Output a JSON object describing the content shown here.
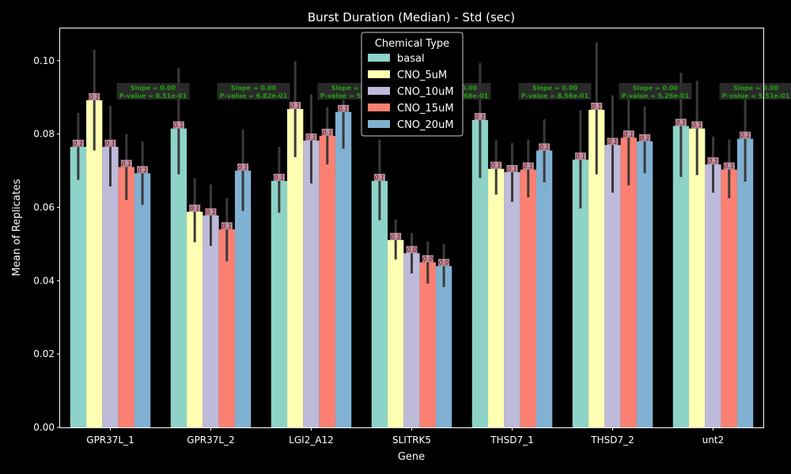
{
  "chart_data": {
    "type": "bar",
    "title": "Burst Duration (Median) - Std (sec)",
    "xlabel": "Gene",
    "ylabel": "Mean of Replicates",
    "ylim": [
      0,
      0.109
    ],
    "yticks": [
      0.0,
      0.02,
      0.04,
      0.06,
      0.08,
      0.1
    ],
    "ytick_labels": [
      "0.00",
      "0.02",
      "0.04",
      "0.06",
      "0.08",
      "0.10"
    ],
    "grid": false,
    "legend": {
      "title": "Chemical Type",
      "placement": "top-center"
    },
    "categories": [
      "GPR37L_1",
      "GPR37L_2",
      "LGI2_A12",
      "SLITRK5",
      "THSD7_1",
      "THSD7_2",
      "unt2"
    ],
    "series": [
      {
        "name": "basal",
        "color": "#8dd3c7",
        "values": [
          0.0765,
          0.0815,
          0.0672,
          0.0672,
          0.0838,
          0.073,
          0.0822
        ],
        "error_low": [
          0.0675,
          0.069,
          0.0585,
          0.0565,
          0.068,
          0.0597,
          0.0683
        ],
        "error_high": [
          0.0857,
          0.098,
          0.0765,
          0.0785,
          0.0993,
          0.0865,
          0.0967
        ]
      },
      {
        "name": "CNO_5uM",
        "color": "#ffffb3",
        "values": [
          0.0892,
          0.0588,
          0.0868,
          0.0511,
          0.0705,
          0.0866,
          0.0815
        ],
        "error_low": [
          0.0755,
          0.0505,
          0.0737,
          0.0458,
          0.0635,
          0.069,
          0.0688
        ],
        "error_high": [
          0.103,
          0.068,
          0.0998,
          0.0567,
          0.0783,
          0.105,
          0.0945
        ]
      },
      {
        "name": "CNO_10uM",
        "color": "#bebada",
        "values": [
          0.0765,
          0.0578,
          0.0782,
          0.0475,
          0.0696,
          0.077,
          0.0717
        ],
        "error_low": [
          0.0657,
          0.0495,
          0.0665,
          0.042,
          0.0615,
          0.064,
          0.064
        ],
        "error_high": [
          0.0877,
          0.0662,
          0.0908,
          0.053,
          0.0775,
          0.0905,
          0.0793
        ]
      },
      {
        "name": "CNO_15uM",
        "color": "#fb8072",
        "values": [
          0.071,
          0.054,
          0.0795,
          0.045,
          0.0703,
          0.079,
          0.0703
        ],
        "error_low": [
          0.062,
          0.0453,
          0.0717,
          0.0392,
          0.0627,
          0.066,
          0.0625
        ],
        "error_high": [
          0.08,
          0.0625,
          0.0873,
          0.0507,
          0.0785,
          0.0915,
          0.0785
        ]
      },
      {
        "name": "CNO_20uM",
        "color": "#80b1d3",
        "values": [
          0.0693,
          0.07,
          0.086,
          0.044,
          0.0755,
          0.078,
          0.0787
        ],
        "error_low": [
          0.0607,
          0.059,
          0.076,
          0.0383,
          0.0668,
          0.0693,
          0.067
        ],
        "error_high": [
          0.078,
          0.0812,
          0.0905,
          0.05,
          0.084,
          0.0875,
          0.0906
        ]
      }
    ],
    "bar_labels": [
      [
        "0.1",
        "0.1",
        "0.1",
        "0.1",
        "0.1",
        "0.1",
        "0.1"
      ],
      [
        "0.1",
        "0.1",
        "0.1",
        "0.1",
        "0.1",
        "0.1",
        "0.1"
      ],
      [
        "0.1",
        "0.1",
        "0.1",
        "0.0",
        "0.1",
        "0.1",
        "0.1"
      ],
      [
        "0.1",
        "0.1",
        "0.1",
        "0.0",
        "0.1",
        "0.1",
        "0.1"
      ],
      [
        "0.1",
        "0.1",
        "0.1",
        "0.0",
        "0.1",
        "0.1",
        "0.1"
      ]
    ],
    "annotations": [
      {
        "line1": "Slope = 0.00",
        "line2": "P-value = 8.51e-01"
      },
      {
        "line1": "Slope = 0.00",
        "line2": "P-value = 6.82e-01"
      },
      {
        "line1": "Slope = 0.00",
        "line2": "P-value = 5.28e-01"
      },
      {
        "line1": "Slope = 0.00",
        "line2": "P-value = 2.68e-01"
      },
      {
        "line1": "Slope = 0.00",
        "line2": "P-value = 8.56e-01"
      },
      {
        "line1": "Slope = 0.00",
        "line2": "P-value = 5.26e-01"
      },
      {
        "line1": "Slope = 0.00",
        "line2": "P-value = 5.51e-01"
      }
    ],
    "annotation_colors": {
      "box": "#2e2e2e",
      "text": "#22a010"
    },
    "bar_label_colors": {
      "box": "#c8a0b0",
      "text": "#800000"
    },
    "errorbar_color": "#3a3a3a"
  }
}
